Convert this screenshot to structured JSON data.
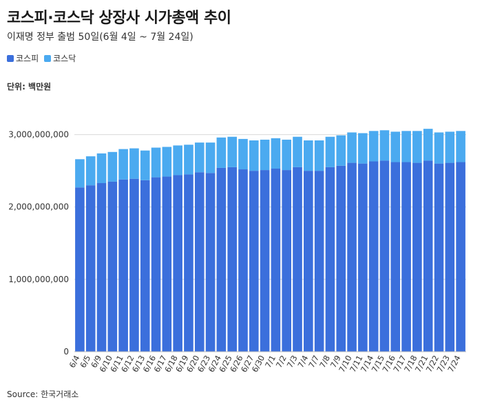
{
  "header": {
    "title": "코스피·코스닥 상장사 시가총액 추이",
    "subtitle": "이재명 정부 출범 50일(6월 4일 ~ 7월 24일)"
  },
  "legend": [
    {
      "label": "코스피",
      "color": "#3b6fdc"
    },
    {
      "label": "코스닥",
      "color": "#4baaf0"
    }
  ],
  "unit_label": "단위: 백만원",
  "source": "Source: 한국거래소",
  "chart_data": {
    "type": "bar",
    "stacked": true,
    "categories": [
      "6/4",
      "6/5",
      "6/9",
      "6/10",
      "6/11",
      "6/12",
      "6/13",
      "6/16",
      "6/17",
      "6/18",
      "6/19",
      "6/20",
      "6/23",
      "6/24",
      "6/25",
      "6/26",
      "6/27",
      "6/30",
      "7/1",
      "7/2",
      "7/3",
      "7/4",
      "7/7",
      "7/8",
      "7/9",
      "7/10",
      "7/11",
      "7/14",
      "7/15",
      "7/16",
      "7/17",
      "7/18",
      "7/21",
      "7/22",
      "7/23",
      "7/24"
    ],
    "series": [
      {
        "name": "코스피",
        "color": "#3b6fdc",
        "values": [
          2270000000,
          2300000000,
          2330000000,
          2350000000,
          2380000000,
          2390000000,
          2370000000,
          2410000000,
          2420000000,
          2440000000,
          2450000000,
          2480000000,
          2470000000,
          2540000000,
          2550000000,
          2520000000,
          2500000000,
          2510000000,
          2530000000,
          2510000000,
          2550000000,
          2500000000,
          2500000000,
          2550000000,
          2570000000,
          2610000000,
          2600000000,
          2630000000,
          2640000000,
          2620000000,
          2620000000,
          2610000000,
          2640000000,
          2600000000,
          2610000000,
          2620000000
        ]
      },
      {
        "name": "코스닥",
        "color": "#4baaf0",
        "values": [
          390000000,
          400000000,
          410000000,
          410000000,
          420000000,
          420000000,
          410000000,
          410000000,
          410000000,
          410000000,
          410000000,
          410000000,
          420000000,
          420000000,
          420000000,
          420000000,
          420000000,
          420000000,
          420000000,
          420000000,
          420000000,
          420000000,
          420000000,
          420000000,
          420000000,
          420000000,
          420000000,
          420000000,
          420000000,
          420000000,
          430000000,
          440000000,
          440000000,
          430000000,
          430000000,
          430000000
        ]
      }
    ],
    "y_ticks": [
      "0",
      "1,000,000,000",
      "2,000,000,000",
      "3,000,000,000"
    ],
    "y_tick_values": [
      0,
      1000000000,
      2000000000,
      3000000000
    ],
    "ylim": [
      0,
      3500000000
    ],
    "grid": true,
    "legend_position": "top-left"
  }
}
